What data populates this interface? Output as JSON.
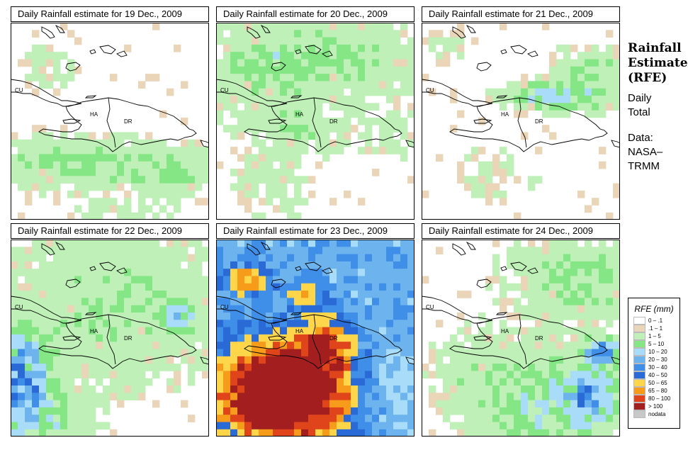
{
  "panels": [
    {
      "title": "Daily Rainfall estimate for  19 Dec., 2009",
      "labels": [
        "CU",
        "HA",
        "DR"
      ]
    },
    {
      "title": "Daily Rainfall estimate for  20 Dec., 2009",
      "labels": [
        "CU",
        "HA",
        "DR"
      ]
    },
    {
      "title": "Daily Rainfall estimate for  21 Dec., 2009",
      "labels": [
        "CU",
        "HA",
        "DR"
      ]
    },
    {
      "title": "Daily Rainfall estimate for  22 Dec., 2009",
      "labels": [
        "CU",
        "HA",
        "DR"
      ]
    },
    {
      "title": "Daily Rainfall estimate for  23 Dec., 2009",
      "labels": [
        "CU",
        "HA",
        "DR"
      ]
    },
    {
      "title": "Daily Rainfall estimate for  24 Dec., 2009",
      "labels": [
        "CU",
        "HA",
        "DR"
      ]
    }
  ],
  "side": {
    "title1": "Rainfall",
    "title2": "Estimate",
    "title3": "(RFE)",
    "daily1": "Daily",
    "daily2": "Total",
    "data1": "Data:",
    "data2": "NASA–",
    "data3": "TRMM"
  },
  "legend": {
    "title": "RFE (mm)",
    "items": [
      {
        "label": "0 – .1",
        "color": "#ffffff"
      },
      {
        "label": ".1 – 1",
        "color": "#ead5b8"
      },
      {
        "label": "1 – 5",
        "color": "#bff0b8"
      },
      {
        "label": "5 – 10",
        "color": "#84e684"
      },
      {
        "label": "10 – 20",
        "color": "#a8dcf8"
      },
      {
        "label": "20 – 30",
        "color": "#6db4ef"
      },
      {
        "label": "30 – 40",
        "color": "#3f8ee8"
      },
      {
        "label": "40 – 50",
        "color": "#2a6ad6"
      },
      {
        "label": "50 – 65",
        "color": "#ffd54a"
      },
      {
        "label": "65 – 80",
        "color": "#f79b1a"
      },
      {
        "label": "80 – 100",
        "color": "#e0441a"
      },
      {
        "label": "> 100",
        "color": "#a31f1f"
      },
      {
        "label": "nodata",
        "color": "#c8c8c8"
      }
    ]
  }
}
